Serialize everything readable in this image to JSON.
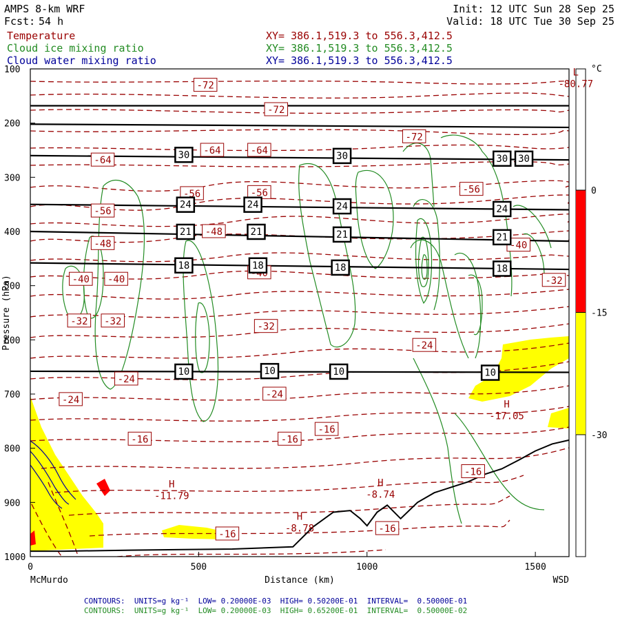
{
  "header": {
    "model": "AMPS 8-km WRF",
    "forecast_label": "Fcst:",
    "forecast_hours": "54 h",
    "init": "Init: 12 UTC Sun 28 Sep 25",
    "valid": "Valid: 18 UTC Tue 30 Sep 25",
    "fields": [
      {
        "name": "Temperature",
        "xy": "",
        "color": "#990000"
      },
      {
        "name": "Cloud ice mixing ratio",
        "xy": "XY= 386.1,519.3 to 556.3,412.5",
        "color": "#228B22"
      },
      {
        "name": "Cloud water mixing ratio",
        "xy": "XY= 386.1,519.3 to 556.3,412.5",
        "color": "#000099"
      }
    ],
    "temp_xy": "XY= 386.1,519.3 to 556.3,412.5"
  },
  "chart_data": {
    "type": "contour",
    "xlabel": "Distance (km)",
    "x_start_label": "McMurdo",
    "x_end_label": "WSD",
    "ylabel": "Pressure (hPa)",
    "xlim": [
      0,
      1600
    ],
    "ylim": [
      1000,
      100
    ],
    "x_ticks": [
      0,
      500,
      1000,
      1500
    ],
    "y_ticks": [
      100,
      200,
      300,
      400,
      500,
      600,
      700,
      800,
      900,
      1000
    ],
    "colorbar": {
      "unit": "°C",
      "ticks": [
        0,
        -15,
        -30
      ],
      "bands": [
        {
          "from": 0,
          "to": -15,
          "color": "#ff0000"
        },
        {
          "from": -15,
          "to": -30,
          "color": "#ffff00"
        }
      ]
    },
    "temperature_labels": [
      {
        "x": 520,
        "p": 130,
        "text": "-72"
      },
      {
        "x": 730,
        "p": 175,
        "text": "-72"
      },
      {
        "x": 1140,
        "p": 225,
        "text": "-72"
      },
      {
        "x": 215,
        "p": 268,
        "text": "-64"
      },
      {
        "x": 540,
        "p": 250,
        "text": "-64"
      },
      {
        "x": 680,
        "p": 250,
        "text": "-64"
      },
      {
        "x": 480,
        "p": 330,
        "text": "-56"
      },
      {
        "x": 680,
        "p": 328,
        "text": "-56"
      },
      {
        "x": 1310,
        "p": 322,
        "text": "-56"
      },
      {
        "x": 215,
        "p": 362,
        "text": "-56"
      },
      {
        "x": 215,
        "p": 422,
        "text": "-48"
      },
      {
        "x": 545,
        "p": 400,
        "text": "-48"
      },
      {
        "x": 1450,
        "p": 425,
        "text": "-40"
      },
      {
        "x": 150,
        "p": 488,
        "text": "-40"
      },
      {
        "x": 255,
        "p": 488,
        "text": "-40"
      },
      {
        "x": 680,
        "p": 476,
        "text": "-40"
      },
      {
        "x": 1555,
        "p": 490,
        "text": "-32"
      },
      {
        "x": 145,
        "p": 565,
        "text": "-32"
      },
      {
        "x": 245,
        "p": 565,
        "text": "-32"
      },
      {
        "x": 700,
        "p": 575,
        "text": "-32"
      },
      {
        "x": 1170,
        "p": 610,
        "text": "-24"
      },
      {
        "x": 120,
        "p": 710,
        "text": "-24"
      },
      {
        "x": 725,
        "p": 700,
        "text": "-24"
      },
      {
        "x": 285,
        "p": 672,
        "text": "-24"
      },
      {
        "x": 325,
        "p": 783,
        "text": "-16"
      },
      {
        "x": 770,
        "p": 783,
        "text": "-16"
      },
      {
        "x": 880,
        "p": 765,
        "text": "-16"
      },
      {
        "x": 1315,
        "p": 843,
        "text": "-16"
      },
      {
        "x": 585,
        "p": 958,
        "text": "-16"
      },
      {
        "x": 1060,
        "p": 948,
        "text": "-16"
      }
    ],
    "extrema": [
      {
        "x": 1620,
        "p": 112,
        "type": "L",
        "value": "-80.77"
      },
      {
        "x": 420,
        "p": 872,
        "type": "H",
        "value": "-11.79"
      },
      {
        "x": 800,
        "p": 932,
        "type": "H",
        "value": "-8.78"
      },
      {
        "x": 1040,
        "p": 870,
        "type": "H",
        "value": "-8.74"
      },
      {
        "x": 1415,
        "p": 725,
        "type": "H",
        "value": "-17.05"
      }
    ],
    "height_lines": [
      {
        "p_start": 168,
        "p_end": 168
      },
      {
        "p_start": 202,
        "p_end": 208
      },
      {
        "p_start": 260,
        "p_end": 268
      },
      {
        "p_start": 350,
        "p_end": 360
      },
      {
        "p_start": 400,
        "p_end": 418
      },
      {
        "p_start": 458,
        "p_end": 470
      },
      {
        "p_start": 658,
        "p_end": 660
      }
    ],
    "height_labels": [
      {
        "x": 455,
        "p": 258,
        "text": "30"
      },
      {
        "x": 925,
        "p": 260,
        "text": "30"
      },
      {
        "x": 1400,
        "p": 265,
        "text": "30"
      },
      {
        "x": 1465,
        "p": 265,
        "text": "30"
      },
      {
        "x": 460,
        "p": 350,
        "text": "24"
      },
      {
        "x": 660,
        "p": 350,
        "text": "24"
      },
      {
        "x": 925,
        "p": 353,
        "text": "24"
      },
      {
        "x": 1400,
        "p": 358,
        "text": "24"
      },
      {
        "x": 460,
        "p": 400,
        "text": "21"
      },
      {
        "x": 670,
        "p": 400,
        "text": "21"
      },
      {
        "x": 925,
        "p": 405,
        "text": "21"
      },
      {
        "x": 1400,
        "p": 410,
        "text": "21"
      },
      {
        "x": 455,
        "p": 462,
        "text": "18"
      },
      {
        "x": 675,
        "p": 462,
        "text": "18"
      },
      {
        "x": 920,
        "p": 466,
        "text": "18"
      },
      {
        "x": 1400,
        "p": 468,
        "text": "18"
      },
      {
        "x": 455,
        "p": 658,
        "text": "10"
      },
      {
        "x": 710,
        "p": 657,
        "text": "10"
      },
      {
        "x": 915,
        "p": 658,
        "text": "10"
      },
      {
        "x": 1365,
        "p": 660,
        "text": "10"
      }
    ],
    "terrain": [
      [
        0,
        990
      ],
      [
        100,
        990
      ],
      [
        300,
        988
      ],
      [
        600,
        986
      ],
      [
        780,
        982
      ],
      [
        840,
        945
      ],
      [
        900,
        918
      ],
      [
        950,
        915
      ],
      [
        980,
        930
      ],
      [
        1000,
        943
      ],
      [
        1030,
        918
      ],
      [
        1060,
        905
      ],
      [
        1100,
        930
      ],
      [
        1150,
        900
      ],
      [
        1200,
        882
      ],
      [
        1250,
        872
      ],
      [
        1300,
        862
      ],
      [
        1350,
        848
      ],
      [
        1400,
        838
      ],
      [
        1450,
        822
      ],
      [
        1500,
        805
      ],
      [
        1550,
        792
      ],
      [
        1600,
        785
      ]
    ]
  },
  "footer": {
    "line1": "CONTOURS:  UNITS=g kg⁻¹  LOW= 0.20000E-03  HIGH= 0.50200E-01  INTERVAL=  0.50000E-01",
    "line2": "CONTOURS:  UNITS=g kg⁻¹  LOW= 0.20000E-03  HIGH= 0.65200E-01  INTERVAL=  0.50000E-02"
  },
  "colors": {
    "temperature": "#990000",
    "ice": "#228B22",
    "water": "#000099",
    "fill_yellow": "#ffff00",
    "fill_red": "#ff0000"
  }
}
